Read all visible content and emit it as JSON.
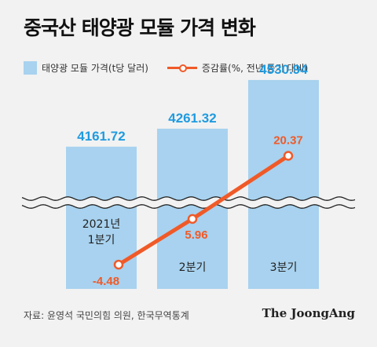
{
  "title": "중국산 태양광 모듈 가격 변화",
  "legend": {
    "bar_label": "태양광 모듈 가격(t당 달러)",
    "line_label": "증감률(%, 전년 동기 대비)"
  },
  "source": "자료: 윤영석 국민의힘 의원, 한국무역통계",
  "brand": "The JoongAng",
  "colors": {
    "bar": "#a8d2ef",
    "bar_label": "#1f9be0",
    "line": "#f05a28",
    "background": "#f2f2f2"
  },
  "chart_data": {
    "type": "bar",
    "categories": [
      "2021년 1분기",
      "2분기",
      "3분기"
    ],
    "series": [
      {
        "name": "태양광 모듈 가격(t당 달러)",
        "type": "bar",
        "values": [
          4161.72,
          4261.32,
          4530.94
        ],
        "labels": [
          "4161.72",
          "4261.32",
          "4530.94"
        ]
      },
      {
        "name": "증감률(%, 전년 동기 대비)",
        "type": "line",
        "values": [
          -4.48,
          5.96,
          20.37
        ],
        "labels": [
          "-4.48",
          "5.96",
          "20.37"
        ]
      }
    ],
    "axis_break": true
  }
}
